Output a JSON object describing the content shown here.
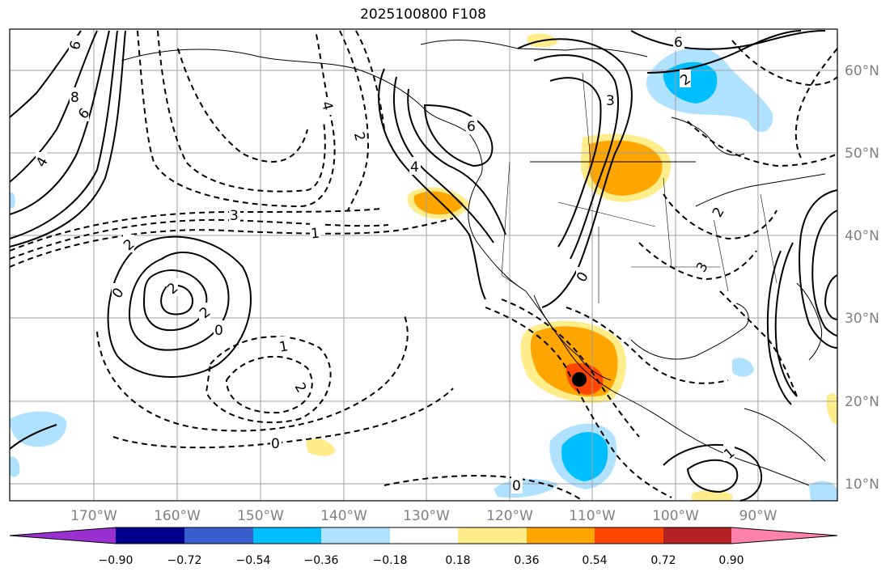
{
  "title": "2025100800 F108",
  "lon_labels": [
    "170°W",
    "160°W",
    "150°W",
    "140°W",
    "130°W",
    "120°W",
    "110°W",
    "100°W",
    "90°W"
  ],
  "lat_labels": [
    "60°N",
    "50°N",
    "40°N",
    "30°N",
    "20°N",
    "10°N"
  ],
  "colorbar": {
    "ticks": [
      "−0.90",
      "−0.72",
      "−0.54",
      "−0.36",
      "−0.18",
      "0.18",
      "0.36",
      "0.54",
      "0.72",
      "0.90"
    ],
    "colors": [
      "#9b30d0",
      "#00008b",
      "#3a5fcd",
      "#00bfff",
      "#b0e2ff",
      "#ffffff",
      "#ffec8b",
      "#ffa500",
      "#ff4500",
      "#b22222",
      "#ff82ab"
    ]
  },
  "contour_labels": {
    "solid": [
      "6",
      "8",
      "6",
      "4",
      "6",
      "4",
      "3",
      "2",
      "2",
      "2",
      "0",
      "1",
      "0",
      "6"
    ],
    "dashed": [
      "4",
      "2",
      "3",
      "1",
      "2",
      "0",
      "1",
      "2",
      "0",
      "2",
      "3",
      "0"
    ]
  },
  "colors": {
    "frame": "#000000",
    "grid": "#a0a0a0",
    "tick_text": "#808080"
  }
}
